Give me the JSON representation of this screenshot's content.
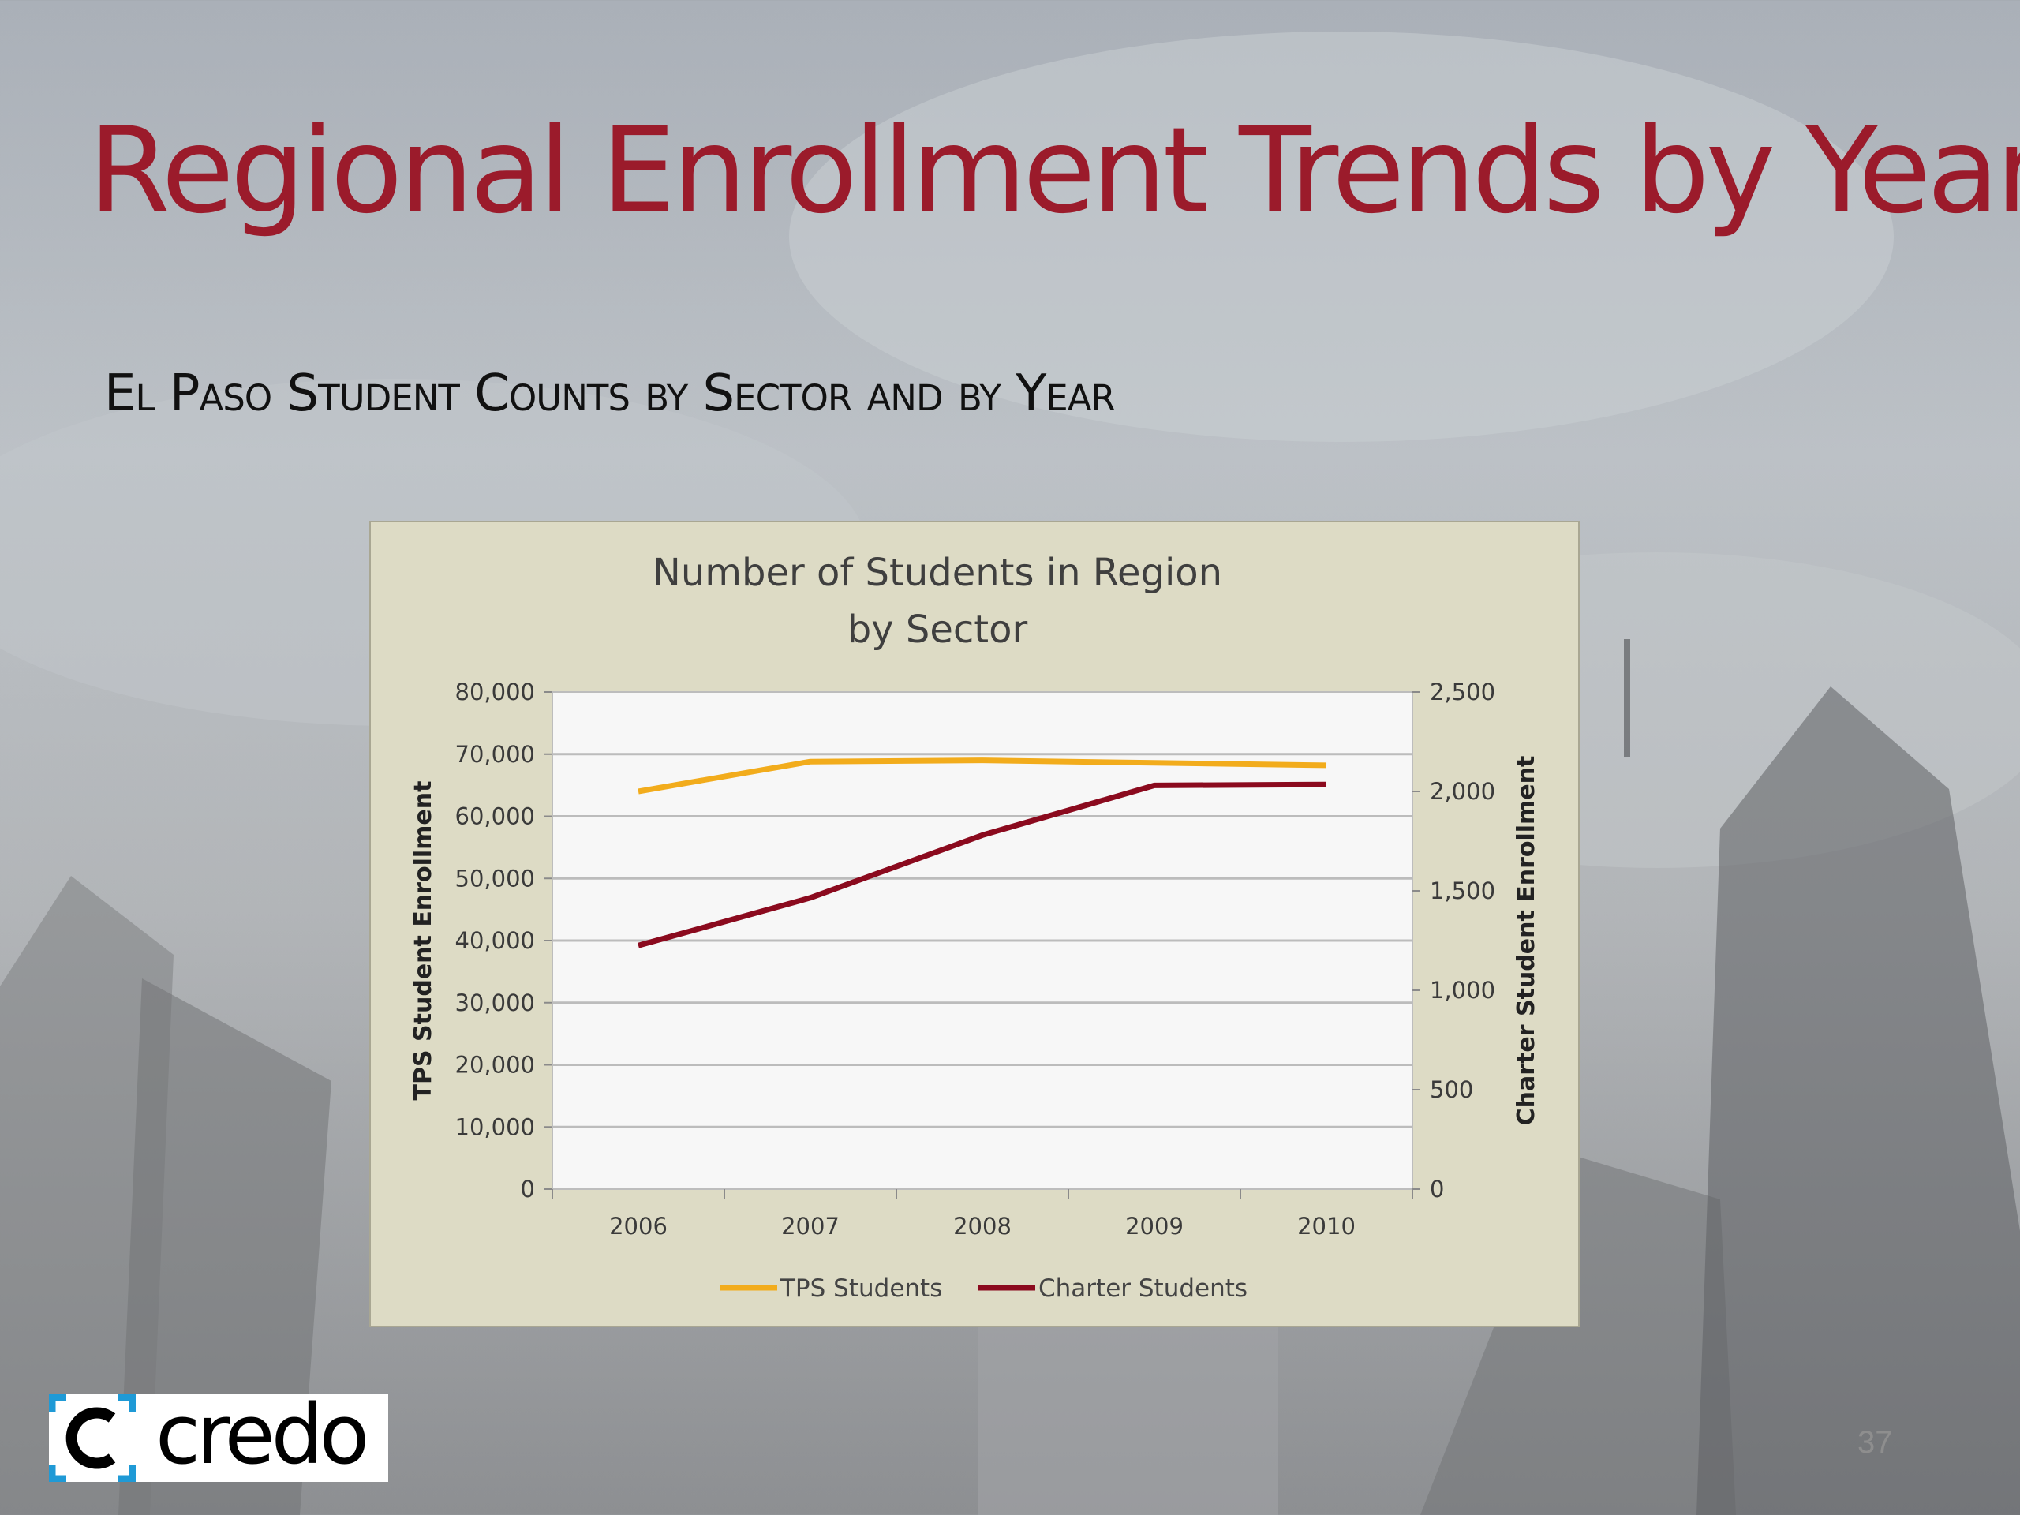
{
  "slide": {
    "title": "Regional Enrollment Trends by Year",
    "subtitle": "El Paso Student Counts by Sector and by Year",
    "page_number": "37",
    "logo_text": "credo",
    "colors": {
      "title": "#9b1b2b",
      "panel_background": "#dddbc5",
      "plot_background": "#f7f7f7"
    }
  },
  "chart_data": {
    "type": "line",
    "title": [
      "Number of Students in Region",
      "by Sector"
    ],
    "categories": [
      "2006",
      "2007",
      "2008",
      "2009",
      "2010"
    ],
    "y_left": {
      "label": "TPS Student Enrollment",
      "range": [
        0,
        80000
      ],
      "ticks": [
        "0",
        "10,000",
        "20,000",
        "30,000",
        "40,000",
        "50,000",
        "60,000",
        "70,000",
        "80,000"
      ]
    },
    "y_right": {
      "label": "Charter Student Enrollment",
      "range": [
        0,
        2500
      ],
      "ticks": [
        "0",
        "500",
        "1,000",
        "1,500",
        "2,000",
        "2,500"
      ]
    },
    "grid": true,
    "legend_position": "bottom",
    "series": [
      {
        "name": "TPS Students",
        "axis": "left",
        "color": "#f2ac1c",
        "values": [
          64000,
          68800,
          69000,
          68600,
          68200
        ]
      },
      {
        "name": "Charter Students",
        "axis": "right",
        "color": "#8b0a1e",
        "values": [
          1225,
          1465,
          1780,
          2030,
          2035
        ]
      }
    ]
  }
}
